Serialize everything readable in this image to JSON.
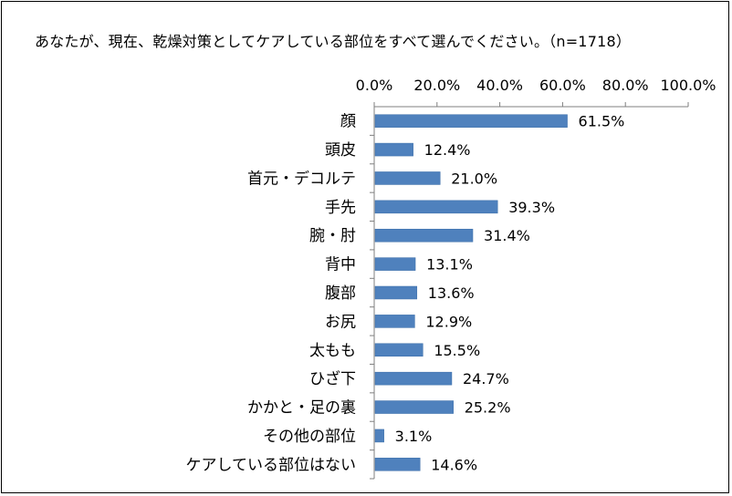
{
  "chart_data": {
    "type": "bar",
    "orientation": "horizontal",
    "title": "あなたが、現在、乾燥対策としてケアしている部位をすべて選んでください。（n=1718）",
    "categories": [
      "顔",
      "頭皮",
      "首元・デコルテ",
      "手先",
      "腕・肘",
      "背中",
      "腹部",
      "お尻",
      "太もも",
      "ひざ下",
      "かかと・足の裏",
      "その他の部位",
      "ケアしている部位はない"
    ],
    "values": [
      61.5,
      12.4,
      21.0,
      39.3,
      31.4,
      13.1,
      13.6,
      12.9,
      15.5,
      24.7,
      25.2,
      3.1,
      14.6
    ],
    "value_labels": [
      "61.5%",
      "12.4%",
      "21.0%",
      "39.3%",
      "31.4%",
      "13.1%",
      "13.6%",
      "12.9%",
      "15.5%",
      "24.7%",
      "25.2%",
      "3.1%",
      "14.6%"
    ],
    "xlim": [
      0,
      100
    ],
    "x_ticks": [
      "0.0%",
      "20.0%",
      "40.0%",
      "60.0%",
      "80.0%",
      "100.0%"
    ],
    "axis_position": "top",
    "grid": false,
    "bar_color": "#4f81bd"
  }
}
